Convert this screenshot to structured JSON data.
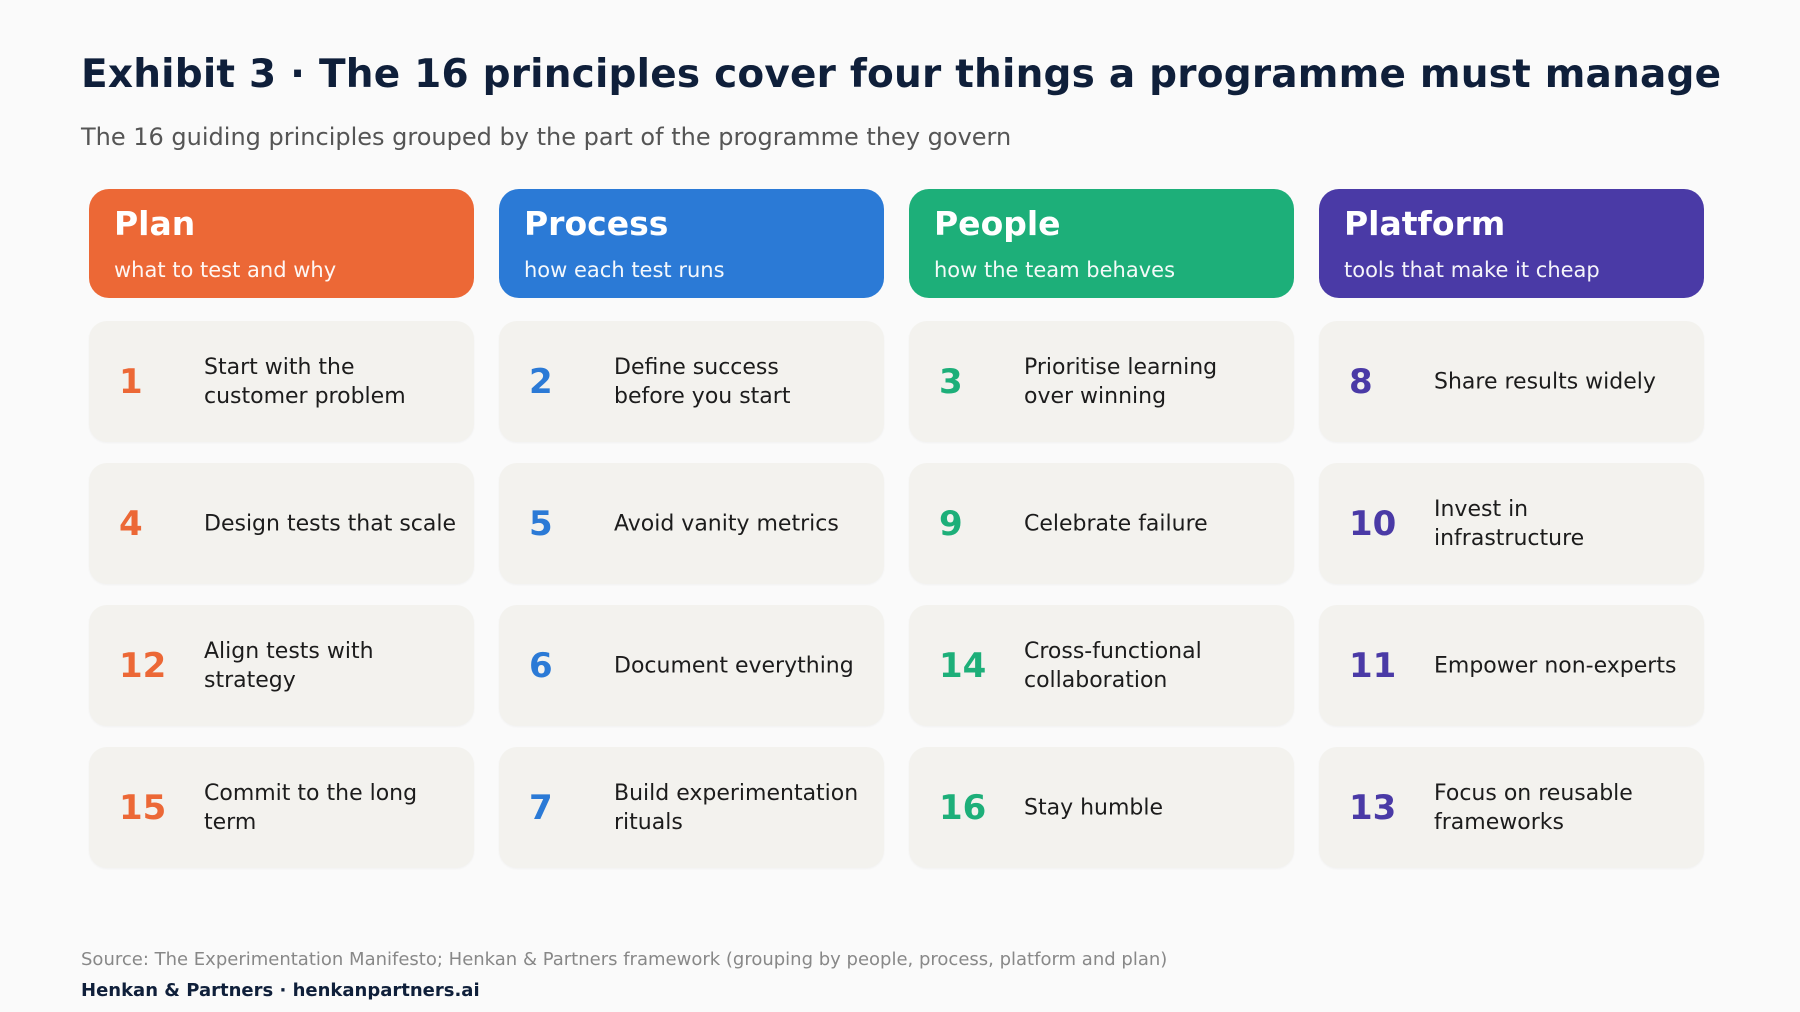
{
  "title": "Exhibit 3 · The 16 principles cover four things a programme must manage",
  "subtitle": "The 16 guiding principles grouped by the part of the programme they govern",
  "columns": [
    {
      "name": "Plan",
      "tagline": "what to test and why",
      "color": "#ec6836",
      "principles": [
        {
          "number": "1",
          "text": "Start with the customer problem"
        },
        {
          "number": "4",
          "text": "Design tests that scale"
        },
        {
          "number": "12",
          "text": "Align tests with strategy"
        },
        {
          "number": "15",
          "text": "Commit to the long term"
        }
      ]
    },
    {
      "name": "Process",
      "tagline": "how each test runs",
      "color": "#2b7ad6",
      "principles": [
        {
          "number": "2",
          "text": "Define success before you start"
        },
        {
          "number": "5",
          "text": "Avoid vanity metrics"
        },
        {
          "number": "6",
          "text": "Document everything"
        },
        {
          "number": "7",
          "text": "Build experimentation rituals"
        }
      ]
    },
    {
      "name": "People",
      "tagline": "how the team behaves",
      "color": "#1daf79",
      "principles": [
        {
          "number": "3",
          "text": "Prioritise learning over winning"
        },
        {
          "number": "9",
          "text": "Celebrate failure"
        },
        {
          "number": "14",
          "text": "Cross-functional collaboration"
        },
        {
          "number": "16",
          "text": "Stay humble"
        }
      ]
    },
    {
      "name": "Platform",
      "tagline": "tools that make it cheap",
      "color": "#4a3aa6",
      "principles": [
        {
          "number": "8",
          "text": "Share results widely"
        },
        {
          "number": "10",
          "text": "Invest in infrastructure"
        },
        {
          "number": "11",
          "text": "Empower non-experts"
        },
        {
          "number": "13",
          "text": "Focus on reusable frameworks"
        }
      ]
    }
  ],
  "source": "Source: The Experimentation Manifesto; Henkan & Partners framework (grouping by people, process, platform and plan)",
  "brand": "Henkan & Partners · henkanpartners.ai"
}
